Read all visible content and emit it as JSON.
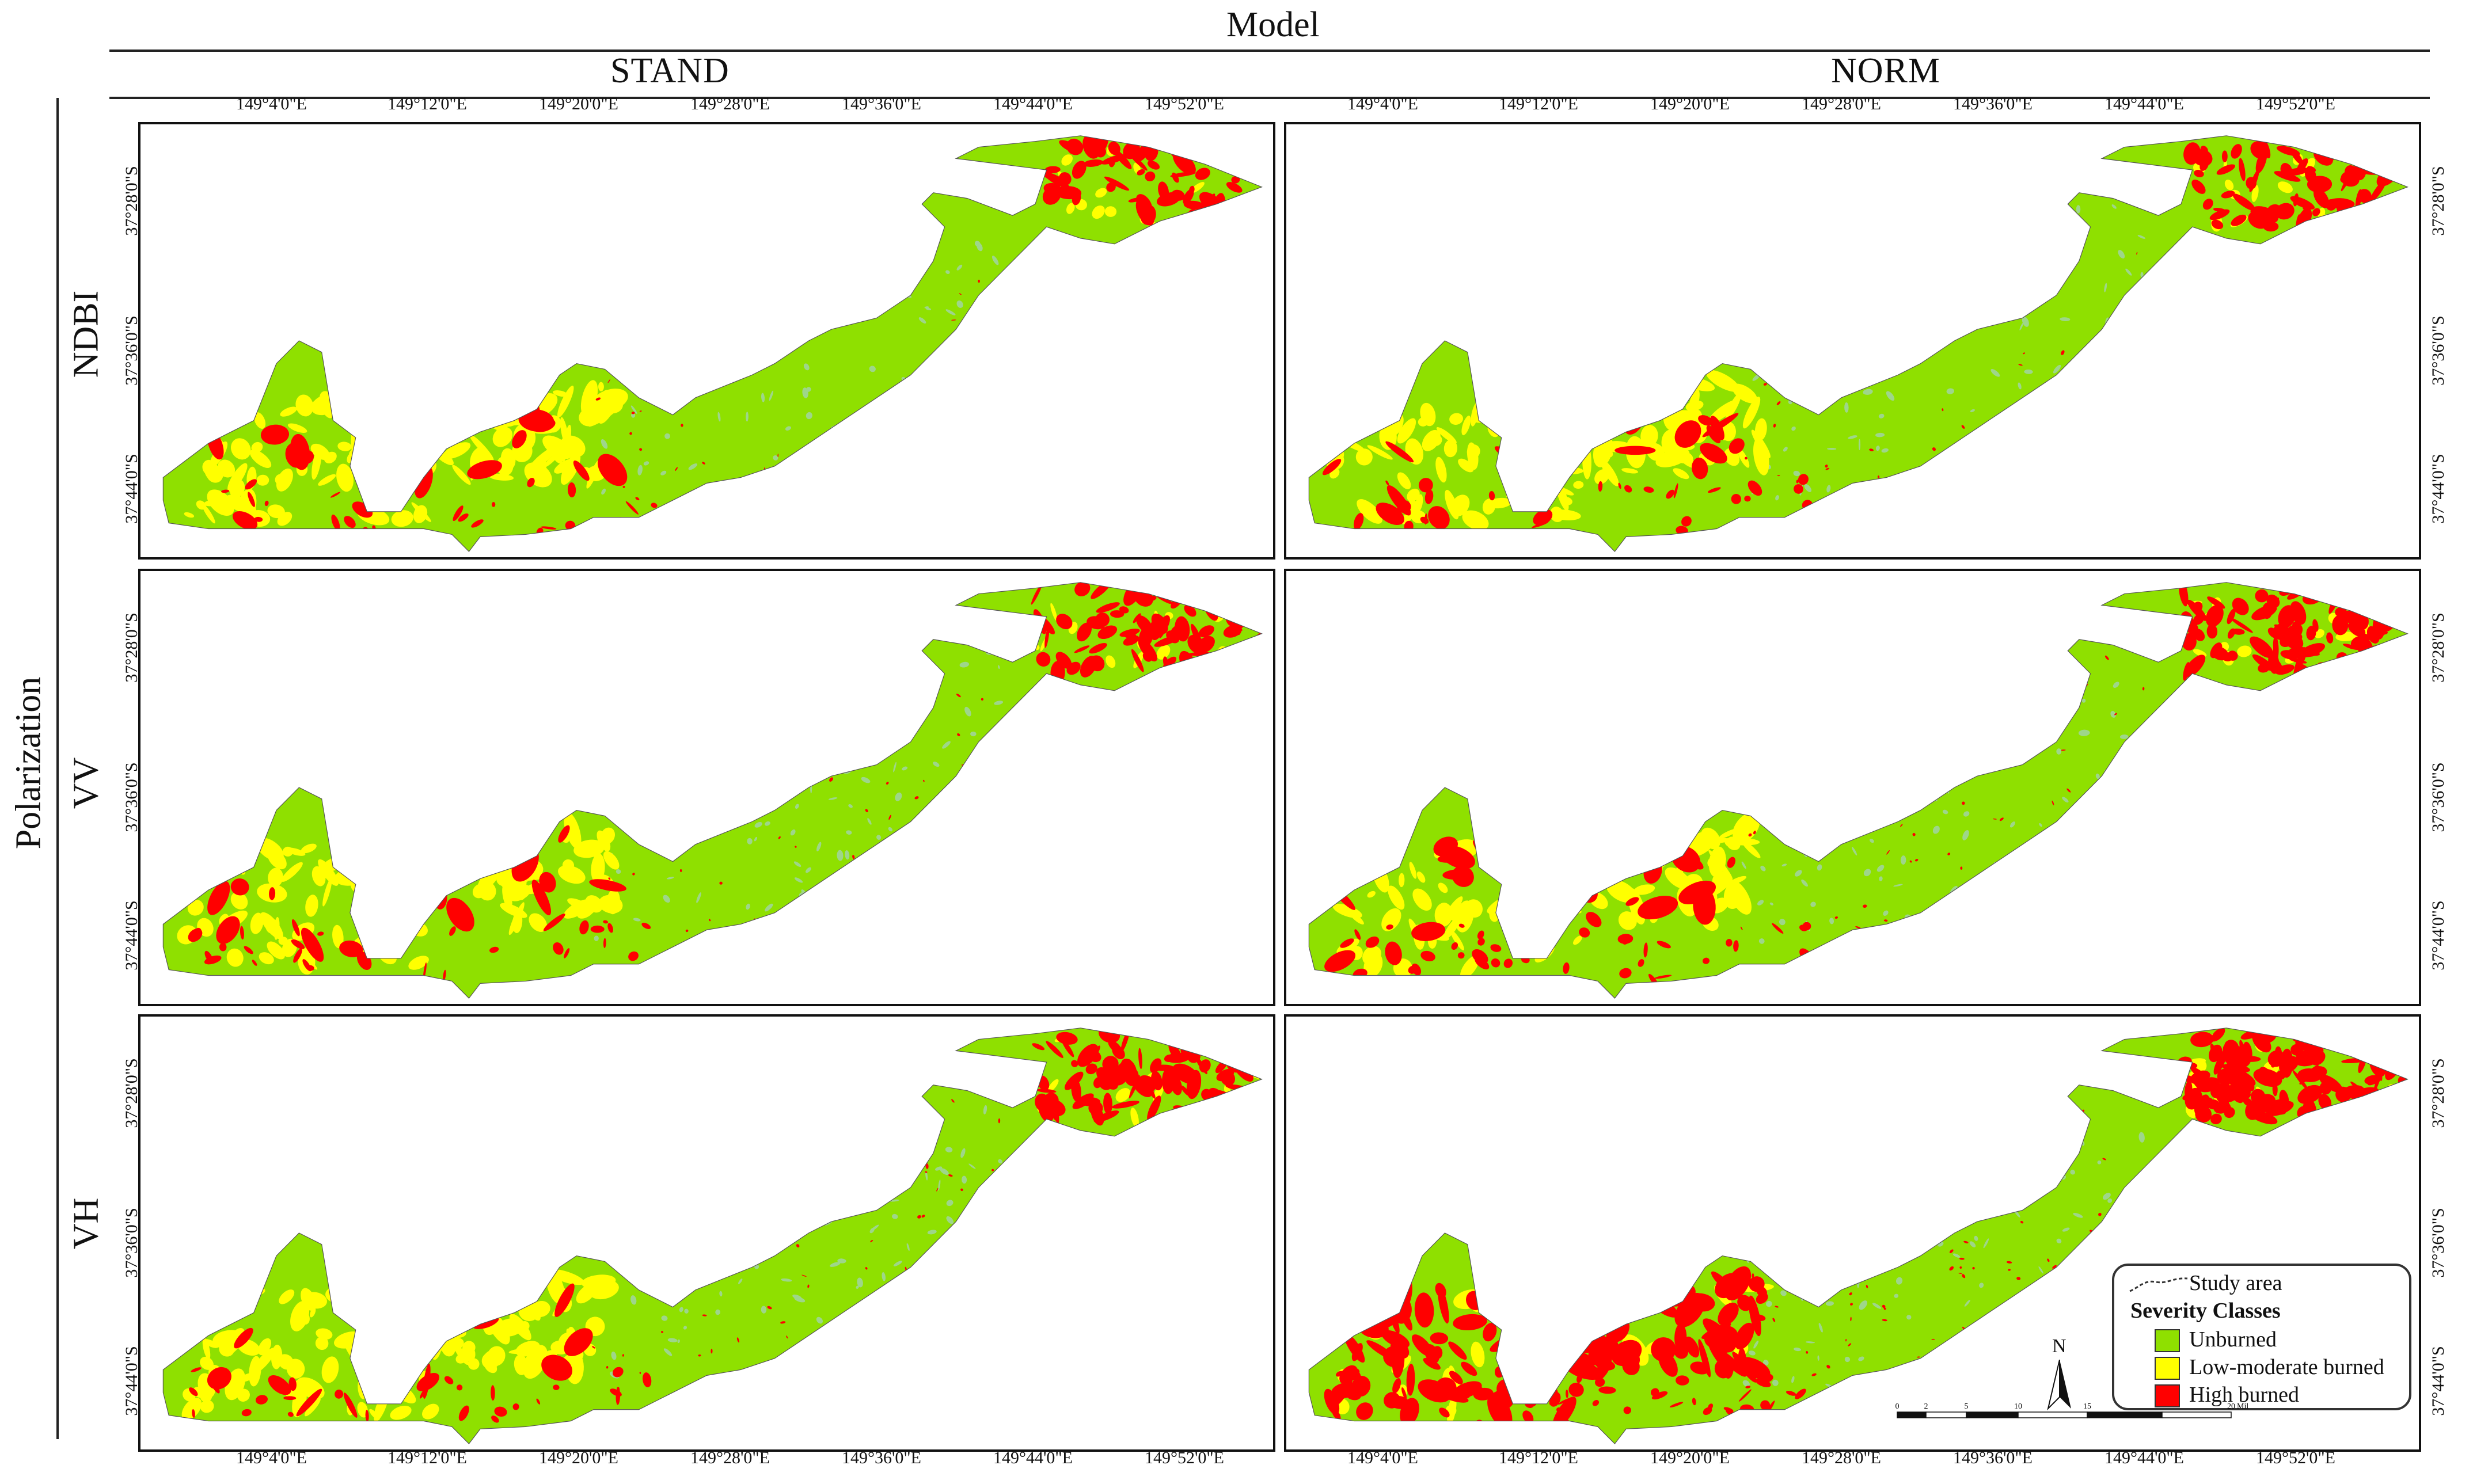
{
  "header": {
    "model_label": "Model",
    "polarization_label": "Polarization"
  },
  "columns": [
    {
      "label": "STAND"
    },
    {
      "label": "NORM"
    }
  ],
  "rows": [
    {
      "label": "NDBI"
    },
    {
      "label": "VV"
    },
    {
      "label": "VH"
    }
  ],
  "axes": {
    "lon_ticks": [
      "149°4'0\"E",
      "149°12'0\"E",
      "149°20'0\"E",
      "149°28'0\"E",
      "149°36'0\"E",
      "149°44'0\"E",
      "149°52'0\"E"
    ],
    "lat_ticks": [
      "37°28'0\"S",
      "37°36'0\"S",
      "37°44'0\"S"
    ]
  },
  "legend": {
    "study_area_label": "Study area",
    "title": "Severity Classes",
    "classes": [
      {
        "label": "Unburned",
        "color": "#8fe000"
      },
      {
        "label": "Low-moderate burned",
        "color": "#ffff00"
      },
      {
        "label": "High burned",
        "color": "#ff0000"
      }
    ]
  },
  "north_arrow": "N",
  "scale_bar": {
    "ticks": [
      "0",
      "2",
      "5",
      "10",
      "15",
      "20"
    ],
    "unit": "Miles"
  },
  "colors": {
    "unburned": "#8fe000",
    "low_moderate": "#ffff00",
    "high": "#ff0000",
    "lightgreen": "#9ed68a"
  }
}
